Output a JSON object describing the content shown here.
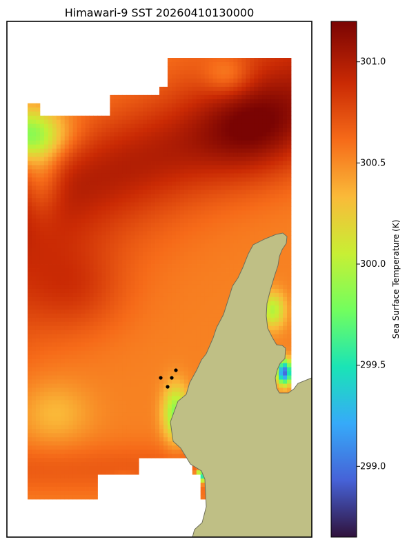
{
  "chart_data": {
    "type": "heatmap",
    "title": "Himawari-9 SST 20260410130000",
    "colorbar": {
      "label": "Sea Surface Temperature (K)",
      "range": [
        298.65,
        301.2
      ],
      "ticks": [
        {
          "value": 299.0,
          "label": "299.0"
        },
        {
          "value": 299.5,
          "label": "299.5"
        },
        {
          "value": 300.0,
          "label": "300.0"
        },
        {
          "value": 300.5,
          "label": "300.5"
        },
        {
          "value": 301.0,
          "label": "301.0"
        }
      ],
      "colormap": [
        "#30123b",
        "#4662d7",
        "#36aaf9",
        "#1ae4b6",
        "#72fe5e",
        "#c8ef34",
        "#faba39",
        "#f66b19",
        "#ca2a04",
        "#7a0403"
      ]
    },
    "field": {
      "description_colors": {
        "land": "#bfbf85",
        "coast": "#6e6e5a",
        "missing": "#ffffff"
      },
      "value_range_observed": [
        298.8,
        301.1
      ],
      "grid_cols": 64,
      "grid_rows": 107
    },
    "points": {
      "count": 4,
      "marker": "black-dot"
    }
  }
}
